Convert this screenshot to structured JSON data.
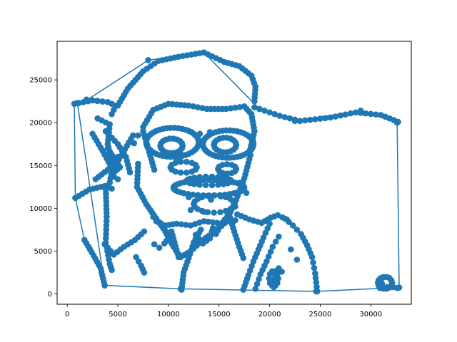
{
  "chart_data": {
    "type": "scatter",
    "title": "",
    "xlabel": "",
    "ylabel": "",
    "xlim": [
      -1000,
      34000
    ],
    "ylim": [
      -1200,
      29500
    ],
    "xticks": [
      0,
      5000,
      10000,
      15000,
      20000,
      25000,
      30000
    ],
    "yticks": [
      0,
      5000,
      10000,
      15000,
      20000,
      25000
    ],
    "grid": false,
    "legend": "none",
    "colors": {
      "series": "#1f77b4",
      "axes": "#000000"
    },
    "hull_line": [
      [
        1000,
        22300
      ],
      [
        3700,
        1000
      ],
      [
        11200,
        600
      ],
      [
        24600,
        300
      ],
      [
        32800,
        750
      ],
      [
        32600,
        20000
      ],
      [
        29000,
        21400
      ],
      [
        22500,
        20200
      ],
      [
        19000,
        21600
      ],
      [
        13500,
        28200
      ],
      [
        8000,
        27300
      ],
      [
        1900,
        22600
      ],
      [
        700,
        22200
      ],
      [
        800,
        11200
      ],
      [
        1700,
        6300
      ]
    ],
    "strokes": [
      {
        "points": [
          [
            700,
            22200
          ],
          [
            2500,
            22600
          ],
          [
            4000,
            22400
          ],
          [
            4800,
            22000
          ],
          [
            4400,
            21000
          ]
        ],
        "step": 500
      },
      {
        "points": [
          [
            1900,
            22700
          ],
          [
            4000,
            22400
          ]
        ],
        "step": 500
      },
      {
        "points": [
          [
            5000,
            22000
          ],
          [
            6000,
            24000
          ],
          [
            7500,
            26000
          ],
          [
            9000,
            27200
          ],
          [
            11000,
            27700
          ],
          [
            13500,
            28200
          ],
          [
            15500,
            27100
          ],
          [
            17000,
            26600
          ],
          [
            18200,
            25500
          ],
          [
            18600,
            24200
          ],
          [
            18500,
            22500
          ]
        ],
        "step": 450
      },
      {
        "points": [
          [
            18500,
            21800
          ],
          [
            21000,
            20800
          ],
          [
            23000,
            20200
          ],
          [
            26000,
            20600
          ],
          [
            28500,
            21200
          ],
          [
            31000,
            20900
          ],
          [
            32700,
            20100
          ]
        ],
        "step": 500
      },
      {
        "points": [
          [
            7500,
            19500
          ],
          [
            8500,
            21500
          ],
          [
            10000,
            22200
          ],
          [
            12000,
            22000
          ],
          [
            13800,
            21600
          ],
          [
            15700,
            21600
          ],
          [
            17500,
            21900
          ],
          [
            18200,
            21000
          ],
          [
            18500,
            19000
          ],
          [
            18000,
            16500
          ]
        ],
        "step": 420
      },
      {
        "points": [
          [
            3000,
            20500
          ],
          [
            4200,
            19800
          ],
          [
            4000,
            17500
          ],
          [
            4500,
            15000
          ],
          [
            4200,
            13000
          ]
        ],
        "step": 450
      },
      {
        "points": [
          [
            2500,
            18700
          ],
          [
            3500,
            16700
          ],
          [
            4500,
            14500
          ],
          [
            5500,
            16500
          ],
          [
            6500,
            18500
          ]
        ],
        "step": 450
      },
      {
        "points": [
          [
            3800,
            19000
          ],
          [
            5000,
            17500
          ],
          [
            5800,
            16000
          ],
          [
            6200,
            14200
          ]
        ],
        "step": 450
      },
      {
        "points": [
          [
            800,
            11200
          ],
          [
            2200,
            12200
          ],
          [
            3700,
            12600
          ],
          [
            4400,
            12300
          ]
        ],
        "step": 400
      },
      {
        "points": [
          [
            3800,
            12600
          ],
          [
            3900,
            9000
          ],
          [
            3800,
            6000
          ],
          [
            4200,
            3500
          ],
          [
            4400,
            2800
          ]
        ],
        "step": 480
      },
      {
        "points": [
          [
            1700,
            6300
          ],
          [
            2600,
            4500
          ],
          [
            3300,
            3000
          ],
          [
            3700,
            1000
          ]
        ],
        "step": 430
      },
      {
        "points": [
          [
            3700,
            5800
          ],
          [
            4600,
            4600
          ],
          [
            5600,
            5500
          ],
          [
            6700,
            6300
          ],
          [
            7600,
            7300
          ]
        ],
        "step": 430
      },
      {
        "points": [
          [
            7000,
            15200
          ],
          [
            6900,
            12500
          ],
          [
            7800,
            10500
          ],
          [
            8800,
            8800
          ],
          [
            9700,
            7300
          ],
          [
            10500,
            5500
          ],
          [
            11200,
            4300
          ]
        ],
        "step": 420
      },
      {
        "points": [
          [
            7500,
            19000
          ],
          [
            8000,
            17000
          ],
          [
            8600,
            14500
          ]
        ],
        "step": 450
      },
      {
        "points": [
          [
            6800,
            4300
          ],
          [
            7300,
            3300
          ],
          [
            7600,
            2500
          ]
        ],
        "step": 450
      },
      {
        "points": [
          [
            11200,
            4300
          ],
          [
            12200,
            5000
          ],
          [
            13400,
            6300
          ],
          [
            14600,
            7300
          ],
          [
            15600,
            8300
          ],
          [
            16600,
            8600
          ]
        ],
        "step": 430
      },
      {
        "points": [
          [
            11300,
            500
          ],
          [
            11500,
            2500
          ],
          [
            12000,
            4200
          ],
          [
            12500,
            6000
          ],
          [
            13200,
            7500
          ]
        ],
        "step": 420
      },
      {
        "points": [
          [
            14700,
            7000
          ],
          [
            15300,
            8300
          ],
          [
            16100,
            9500
          ],
          [
            16700,
            11000
          ],
          [
            17500,
            13500
          ],
          [
            18100,
            16200
          ]
        ],
        "step": 430
      },
      {
        "points": [
          [
            16800,
            9300
          ],
          [
            18000,
            8700
          ],
          [
            19200,
            8300
          ],
          [
            20100,
            8900
          ],
          [
            20800,
            9200
          ],
          [
            21700,
            8700
          ]
        ],
        "step": 430
      },
      {
        "points": [
          [
            8800,
            8500
          ],
          [
            9700,
            8000
          ],
          [
            10800,
            8200
          ],
          [
            12200,
            8000
          ],
          [
            13500,
            8500
          ],
          [
            14800,
            8300
          ]
        ],
        "step": 430
      },
      {
        "points": [
          [
            17400,
            500
          ],
          [
            17900,
            2200
          ],
          [
            18400,
            3800
          ],
          [
            18900,
            5200
          ],
          [
            19400,
            6600
          ],
          [
            20000,
            8200
          ]
        ],
        "step": 500
      },
      {
        "points": [
          [
            18600,
            600
          ],
          [
            19100,
            2300
          ],
          [
            19700,
            3800
          ],
          [
            20300,
            5500
          ],
          [
            20900,
            6700
          ]
        ],
        "step": 550
      },
      {
        "points": [
          [
            20400,
            800
          ],
          [
            20600,
            2400
          ],
          [
            20900,
            3000
          ],
          [
            21200,
            2600
          ]
        ],
        "step": 350
      },
      {
        "points": [
          [
            21500,
            8800
          ],
          [
            22300,
            8000
          ],
          [
            23100,
            7000
          ],
          [
            23700,
            5700
          ],
          [
            24200,
            4300
          ],
          [
            24500,
            2400
          ],
          [
            24700,
            300
          ]
        ],
        "step": 560
      },
      {
        "points": [
          [
            16000,
            9300
          ],
          [
            16500,
            7300
          ],
          [
            17000,
            5500
          ],
          [
            17400,
            4200
          ]
        ],
        "step": 450
      },
      {
        "points": [
          [
            5000,
            16000
          ],
          [
            4000,
            14500
          ],
          [
            2800,
            13400
          ]
        ],
        "step": 450
      },
      {
        "points": [
          [
            4000,
            17000
          ],
          [
            4800,
            15500
          ],
          [
            5200,
            14800
          ],
          [
            4600,
            14200
          ]
        ],
        "step": 300
      },
      {
        "points": [
          [
            8500,
            9000
          ],
          [
            9600,
            7700
          ],
          [
            10000,
            6500
          ],
          [
            9600,
            5900
          ]
        ],
        "step": 400
      },
      {
        "points": [
          [
            10300,
            7300
          ],
          [
            10700,
            5600
          ],
          [
            11000,
            4300
          ]
        ],
        "step": 450
      },
      {
        "points": [
          [
            12700,
            6900
          ],
          [
            13400,
            5900
          ],
          [
            14100,
            6500
          ],
          [
            14400,
            7700
          ]
        ],
        "step": 420
      }
    ],
    "loops": [
      {
        "cx": 10400,
        "cy": 17700,
        "rx": 2600,
        "ry": 1700,
        "count": 42
      },
      {
        "cx": 15900,
        "cy": 17500,
        "rx": 2500,
        "ry": 1600,
        "count": 42
      },
      {
        "cx": 10300,
        "cy": 17300,
        "rx": 1100,
        "ry": 850,
        "count": 18
      },
      {
        "cx": 15600,
        "cy": 17400,
        "rx": 1100,
        "ry": 850,
        "count": 18
      },
      {
        "cx": 14000,
        "cy": 12400,
        "rx": 3500,
        "ry": 900,
        "count": 40
      },
      {
        "cx": 11500,
        "cy": 14800,
        "rx": 1300,
        "ry": 650,
        "count": 14
      },
      {
        "cx": 15800,
        "cy": 14600,
        "rx": 900,
        "ry": 550,
        "count": 12
      },
      {
        "cx": 14000,
        "cy": 13200,
        "rx": 2200,
        "ry": 500,
        "count": 22
      },
      {
        "cx": 31400,
        "cy": 1300,
        "rx": 700,
        "ry": 700,
        "count": 14
      },
      {
        "cx": 20400,
        "cy": 1800,
        "rx": 450,
        "ry": 900,
        "count": 10
      },
      {
        "cx": 14500,
        "cy": 10500,
        "rx": 2000,
        "ry": 1000,
        "count": 20
      }
    ],
    "extra_points": [
      [
        13100,
        17800
      ],
      [
        13100,
        18700
      ],
      [
        12300,
        18900
      ],
      [
        14100,
        18900
      ],
      [
        7000,
        18500
      ],
      [
        6600,
        17600
      ],
      [
        4600,
        13700
      ],
      [
        5000,
        13400
      ],
      [
        11000,
        15800
      ],
      [
        11200,
        16400
      ],
      [
        13000,
        11200
      ],
      [
        14200,
        11000
      ],
      [
        15200,
        11400
      ],
      [
        12000,
        11300
      ],
      [
        31200,
        1900
      ],
      [
        31800,
        1900
      ],
      [
        31600,
        800
      ],
      [
        32200,
        800
      ],
      [
        32600,
        700
      ],
      [
        30900,
        700
      ],
      [
        31100,
        1200
      ],
      [
        22700,
        4000
      ],
      [
        22100,
        5200
      ],
      [
        8600,
        5800
      ],
      [
        9100,
        5400
      ],
      [
        12200,
        9800
      ],
      [
        13500,
        9600
      ],
      [
        16600,
        10200
      ],
      [
        17700,
        11800
      ],
      [
        17100,
        13000
      ]
    ]
  }
}
